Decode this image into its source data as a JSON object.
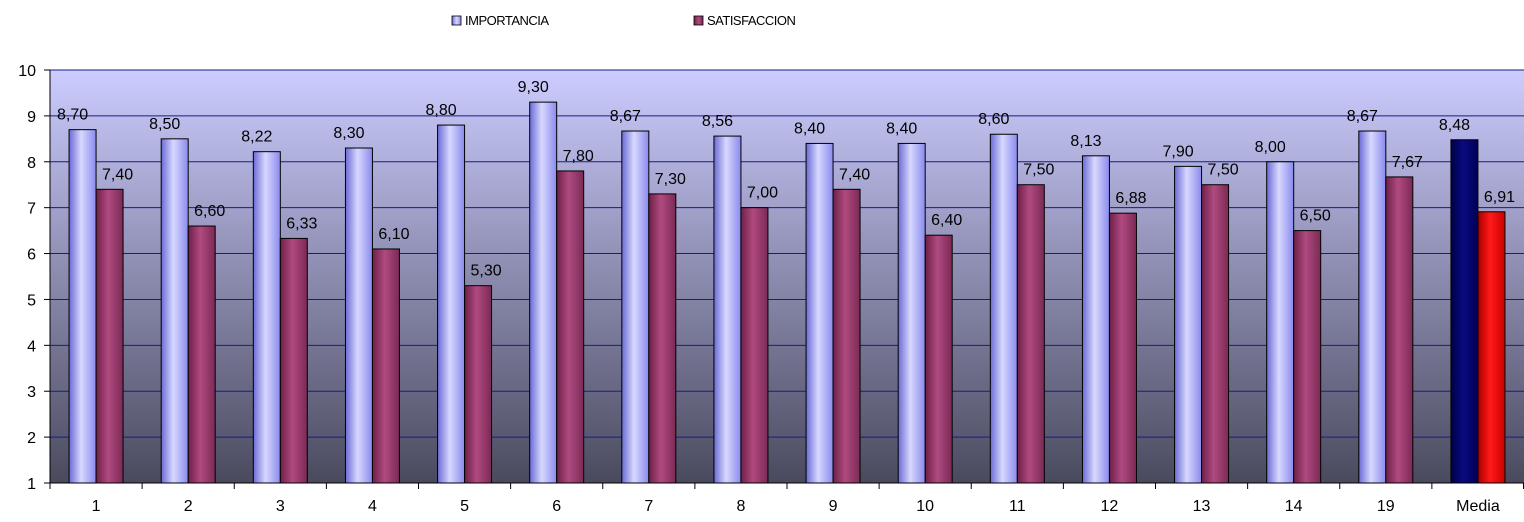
{
  "chart_data": {
    "type": "bar",
    "categories": [
      "1",
      "2",
      "3",
      "4",
      "5",
      "6",
      "7",
      "8",
      "9",
      "10",
      "11",
      "12",
      "13",
      "14",
      "19",
      "Media"
    ],
    "series": [
      {
        "name": "IMPORTANCIA",
        "values": [
          8.7,
          8.5,
          8.22,
          8.3,
          8.8,
          9.3,
          8.67,
          8.56,
          8.4,
          8.4,
          8.6,
          8.13,
          7.9,
          8.0,
          8.67,
          8.48
        ],
        "labels": [
          "8,70",
          "8,50",
          "8,22",
          "8,30",
          "8,80",
          "9,30",
          "8,67",
          "8,56",
          "8,40",
          "8,40",
          "8,60",
          "8,13",
          "7,90",
          "8,00",
          "8,67",
          "8,48"
        ],
        "color": "#9999ff",
        "highlight_color": "#000066"
      },
      {
        "name": "SATISFACCION",
        "values": [
          7.4,
          6.6,
          6.33,
          6.1,
          5.3,
          7.8,
          7.3,
          7.0,
          7.4,
          6.4,
          7.5,
          6.88,
          7.5,
          6.5,
          7.67,
          6.91
        ],
        "labels": [
          "7,40",
          "6,60",
          "6,33",
          "6,10",
          "5,30",
          "7,80",
          "7,30",
          "7,00",
          "7,40",
          "6,40",
          "7,50",
          "6,88",
          "7,50",
          "6,50",
          "7,67",
          "6,91"
        ],
        "color": "#993366",
        "highlight_color": "#ff0000"
      }
    ],
    "yticks": [
      "1",
      "2",
      "3",
      "4",
      "5",
      "6",
      "7",
      "8",
      "9",
      "10"
    ],
    "ylim": [
      1,
      10
    ],
    "grid": true,
    "legend_position": "top",
    "highlighted_category": "Media",
    "title": "",
    "xlabel": "",
    "ylabel": ""
  }
}
